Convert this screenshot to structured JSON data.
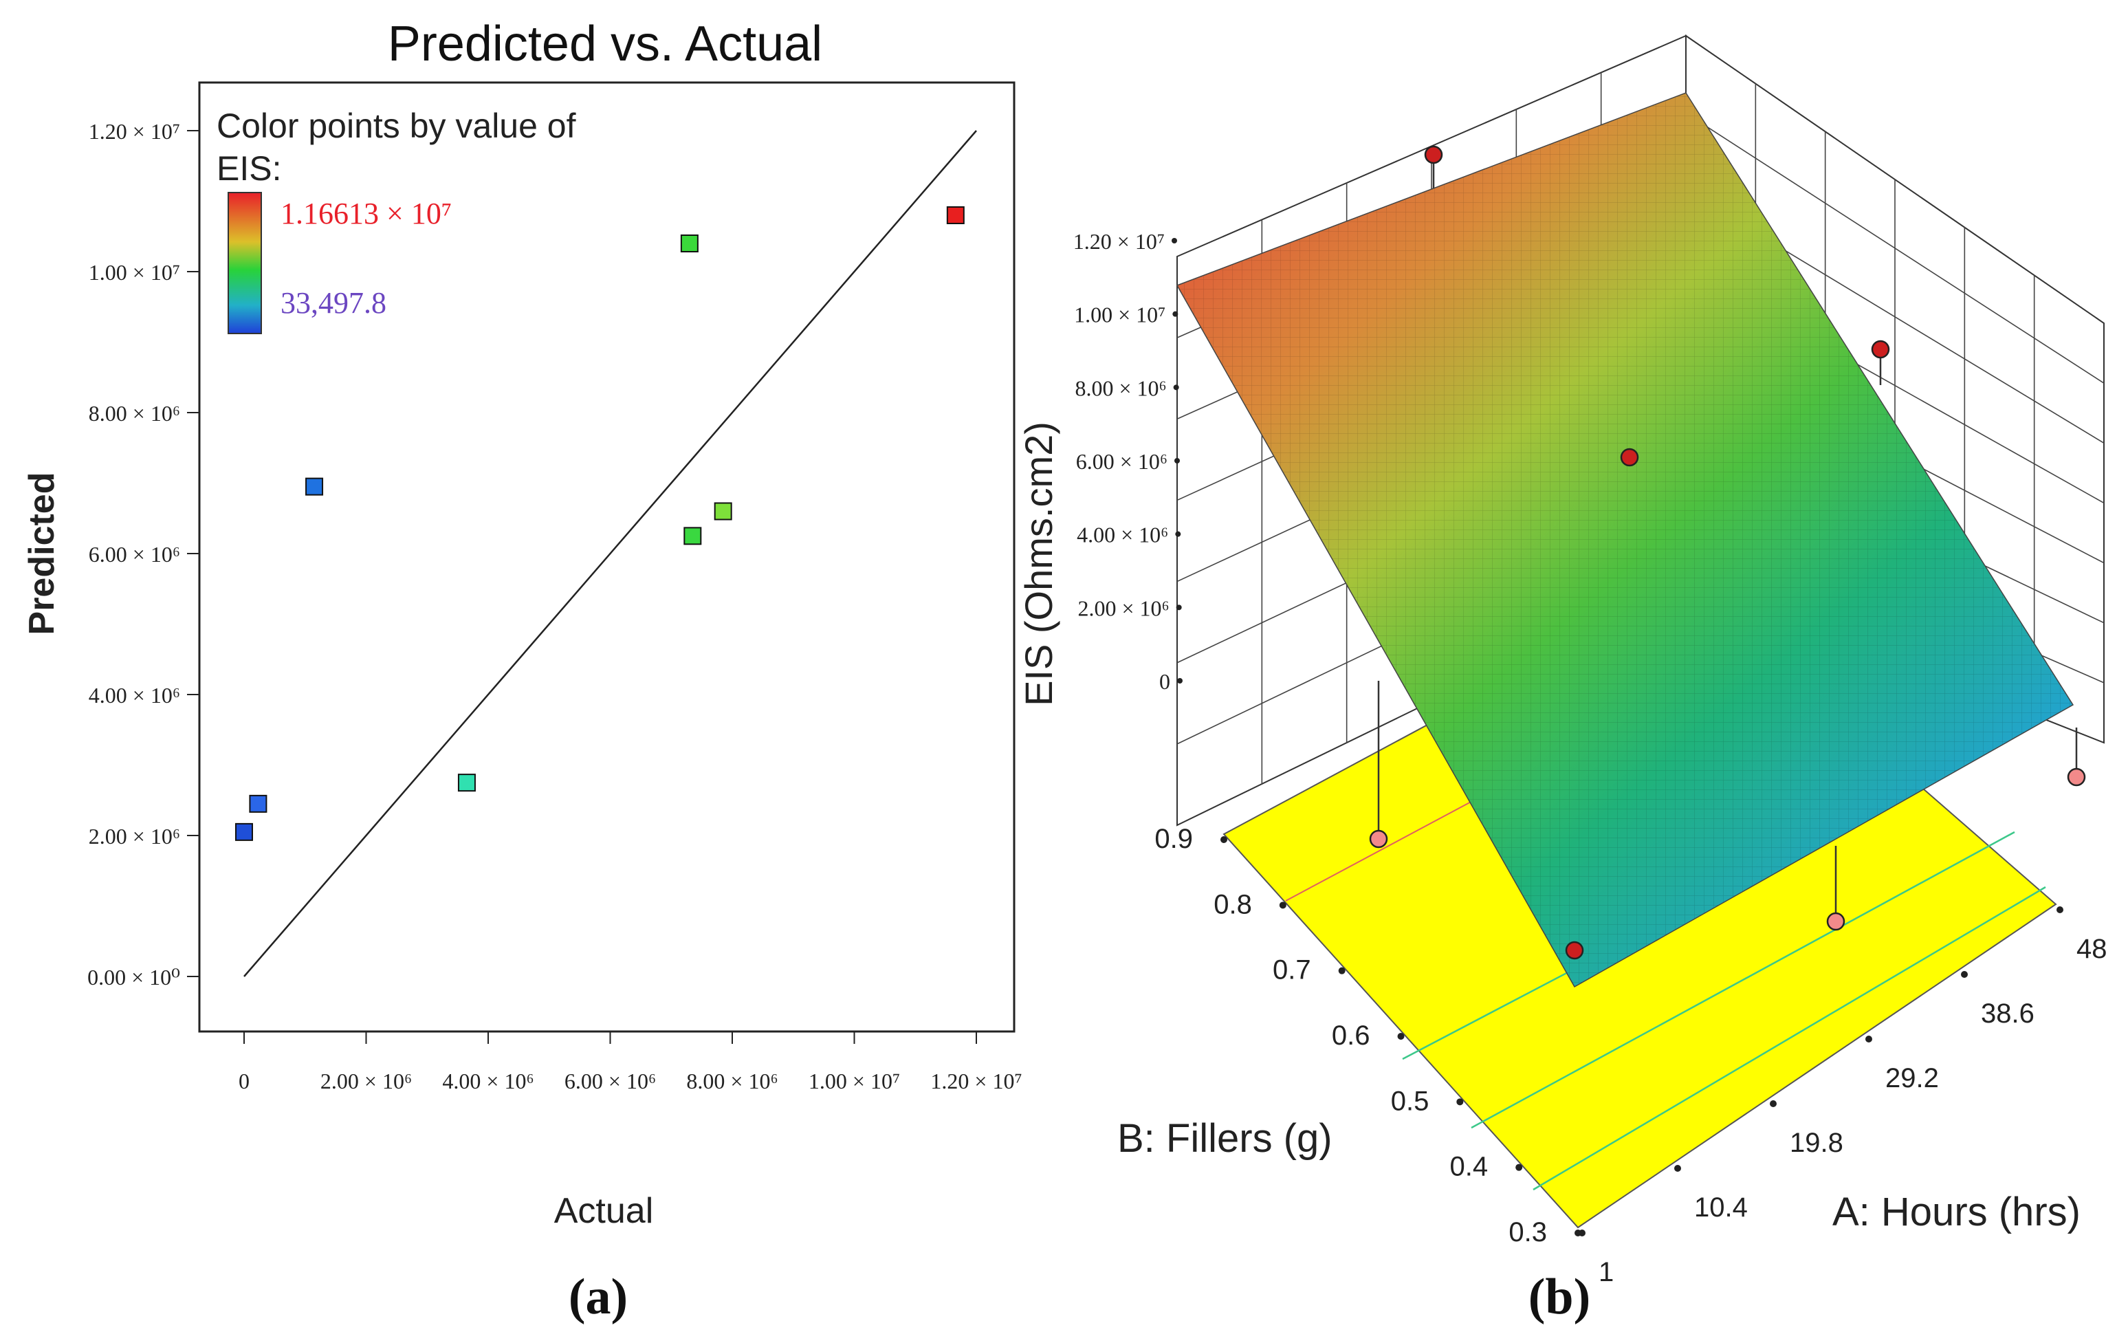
{
  "chart_data": [
    {
      "panel": "(a)",
      "type": "scatter",
      "title": "Predicted vs. Actual",
      "xlabel": "Actual",
      "ylabel": "Predicted",
      "xlim": [
        0,
        12500000
      ],
      "ylim": [
        0,
        12500000
      ],
      "x_ticks": [
        0,
        2000000,
        4000000,
        6000000,
        8000000,
        10000000,
        12000000
      ],
      "x_tick_labels": [
        "0",
        "2.00 × 10⁶",
        "4.00 × 10⁶",
        "6.00 × 10⁶",
        "8.00 × 10⁶",
        "1.00 × 10⁷",
        "1.20 × 10⁷"
      ],
      "y_ticks": [
        0,
        2000000,
        4000000,
        6000000,
        8000000,
        10000000,
        12000000
      ],
      "y_tick_labels": [
        "0.00 × 10⁰",
        "2.00 × 10⁶",
        "4.00 × 10⁶",
        "6.00 × 10⁶",
        "8.00 × 10⁶",
        "1.00 × 10⁷",
        "1.20 × 10⁷"
      ],
      "reference_line": {
        "from": [
          0,
          0
        ],
        "to": [
          12000000,
          12000000
        ]
      },
      "legend": {
        "title": "Color points by value of EIS:",
        "title_lines": [
          "Color points by value of",
          "EIS:"
        ],
        "max_label": "1.16613 × 10⁷",
        "min_label": "33,497.8",
        "max_color": "#e8202a",
        "min_color": "#6b46c1",
        "placement": "top-left"
      },
      "points": [
        {
          "x": 0,
          "y": 2050000,
          "color": "#1f4fd8"
        },
        {
          "x": 230000,
          "y": 2450000,
          "color": "#2a66e8"
        },
        {
          "x": 1150000,
          "y": 6950000,
          "color": "#1f72e0"
        },
        {
          "x": 3650000,
          "y": 2750000,
          "color": "#30e0b0"
        },
        {
          "x": 7300000,
          "y": 10400000,
          "color": "#3bd83b"
        },
        {
          "x": 7350000,
          "y": 6250000,
          "color": "#3ad840"
        },
        {
          "x": 7850000,
          "y": 6600000,
          "color": "#7ee03a"
        },
        {
          "x": 11660000,
          "y": 10800000,
          "color": "#e81f1f"
        }
      ]
    },
    {
      "panel": "(b)",
      "type": "surface3d",
      "zlabel": "EIS (Ohms.cm2)",
      "xlabel": "A: Hours (hrs)",
      "ylabel": "B: Fillers (g)",
      "x_tick_labels": [
        "1",
        "10.4",
        "19.8",
        "29.2",
        "38.6",
        "48"
      ],
      "y_tick_labels": [
        "0.3",
        "0.4",
        "0.5",
        "0.6",
        "0.7",
        "0.8",
        "0.9"
      ],
      "z_tick_labels": [
        "0",
        "2.00 × 10⁶",
        "4.00 × 10⁶",
        "6.00 × 10⁶",
        "8.00 × 10⁶",
        "1.00 × 10⁷",
        "1.20 × 10⁷"
      ],
      "floor_color": "#ffff00",
      "surface_colors": [
        "#23a7e3",
        "#2fbf5a",
        "#a4d23a",
        "#e0a43a",
        "#e0553a"
      ]
    }
  ],
  "panel_labels": [
    "(a)",
    "(b)"
  ]
}
